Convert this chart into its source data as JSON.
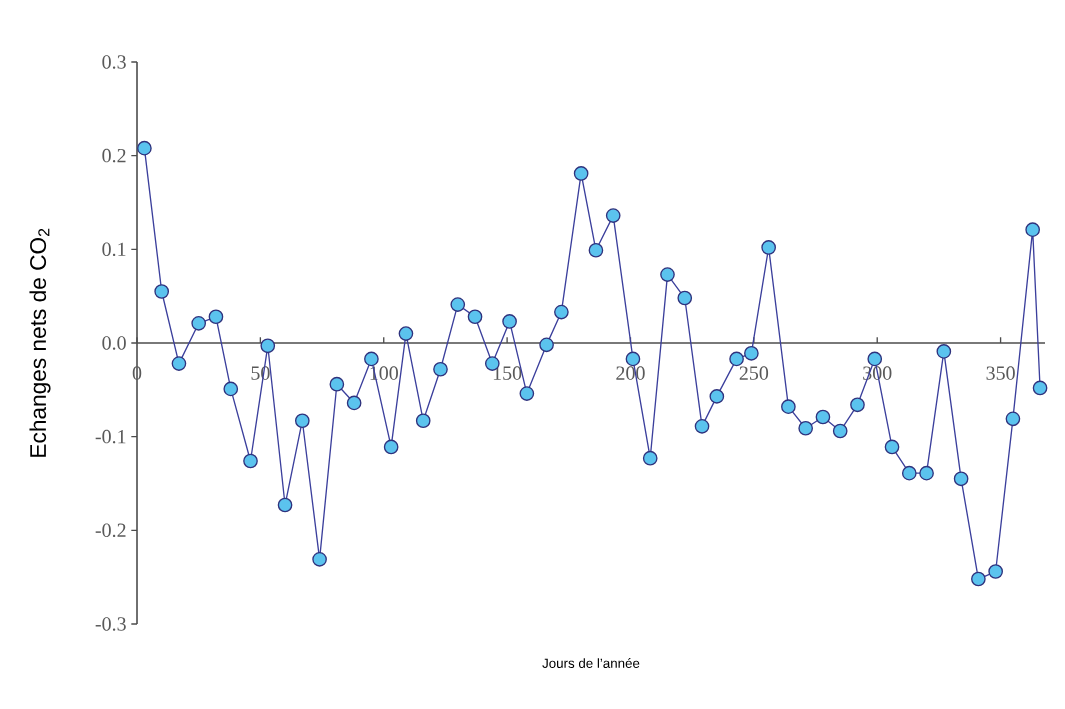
{
  "chart_data": {
    "type": "line",
    "xlabel": "Jours de l’année",
    "ylabel": "Echanges nets de CO$_{2}$",
    "xlim": [
      0,
      368
    ],
    "ylim": [
      -0.3,
      0.3
    ],
    "xticks": [
      0,
      50,
      100,
      150,
      200,
      250,
      300,
      350
    ],
    "yticks": [
      {
        "value": -0.3,
        "label": "-0.3"
      },
      {
        "value": -0.2,
        "label": "-0.2"
      },
      {
        "value": -0.1,
        "label": "-0.1"
      },
      {
        "value": 0,
        "label": "0.0"
      },
      {
        "value": 0.1,
        "label": "0.1"
      },
      {
        "value": 0.2,
        "label": "0.2"
      },
      {
        "value": 0.3,
        "label": "0.3"
      }
    ],
    "marker": "circle",
    "grid": false,
    "series": [
      {
        "color": "#3b3f9c",
        "x": [
          3,
          10,
          17,
          25,
          32,
          38,
          46,
          53,
          60,
          67,
          74,
          81,
          88,
          95,
          103,
          109,
          116,
          123,
          130,
          137,
          144,
          151,
          158,
          166,
          172,
          180,
          186,
          193,
          201,
          208,
          215,
          222,
          229,
          235,
          243,
          249,
          256,
          264,
          271,
          278,
          285,
          292,
          299,
          306,
          313,
          320,
          327,
          334,
          341,
          348,
          355,
          363,
          366
        ],
        "values": [
          0.208,
          0.055,
          -0.022,
          0.021,
          0.028,
          -0.049,
          -0.126,
          -0.003,
          -0.173,
          -0.083,
          -0.231,
          -0.044,
          -0.064,
          -0.017,
          -0.111,
          0.01,
          -0.083,
          -0.028,
          0.041,
          0.028,
          -0.022,
          0.023,
          -0.054,
          -0.002,
          0.033,
          0.181,
          0.099,
          0.136,
          -0.017,
          -0.123,
          0.073,
          0.048,
          -0.089,
          -0.057,
          -0.017,
          -0.011,
          0.102,
          -0.068,
          -0.091,
          -0.079,
          -0.094,
          -0.066,
          -0.017,
          -0.111,
          -0.139,
          -0.139,
          -0.009,
          -0.145,
          -0.252,
          -0.244,
          -0.081,
          0.121,
          -0.048
        ]
      }
    ]
  }
}
